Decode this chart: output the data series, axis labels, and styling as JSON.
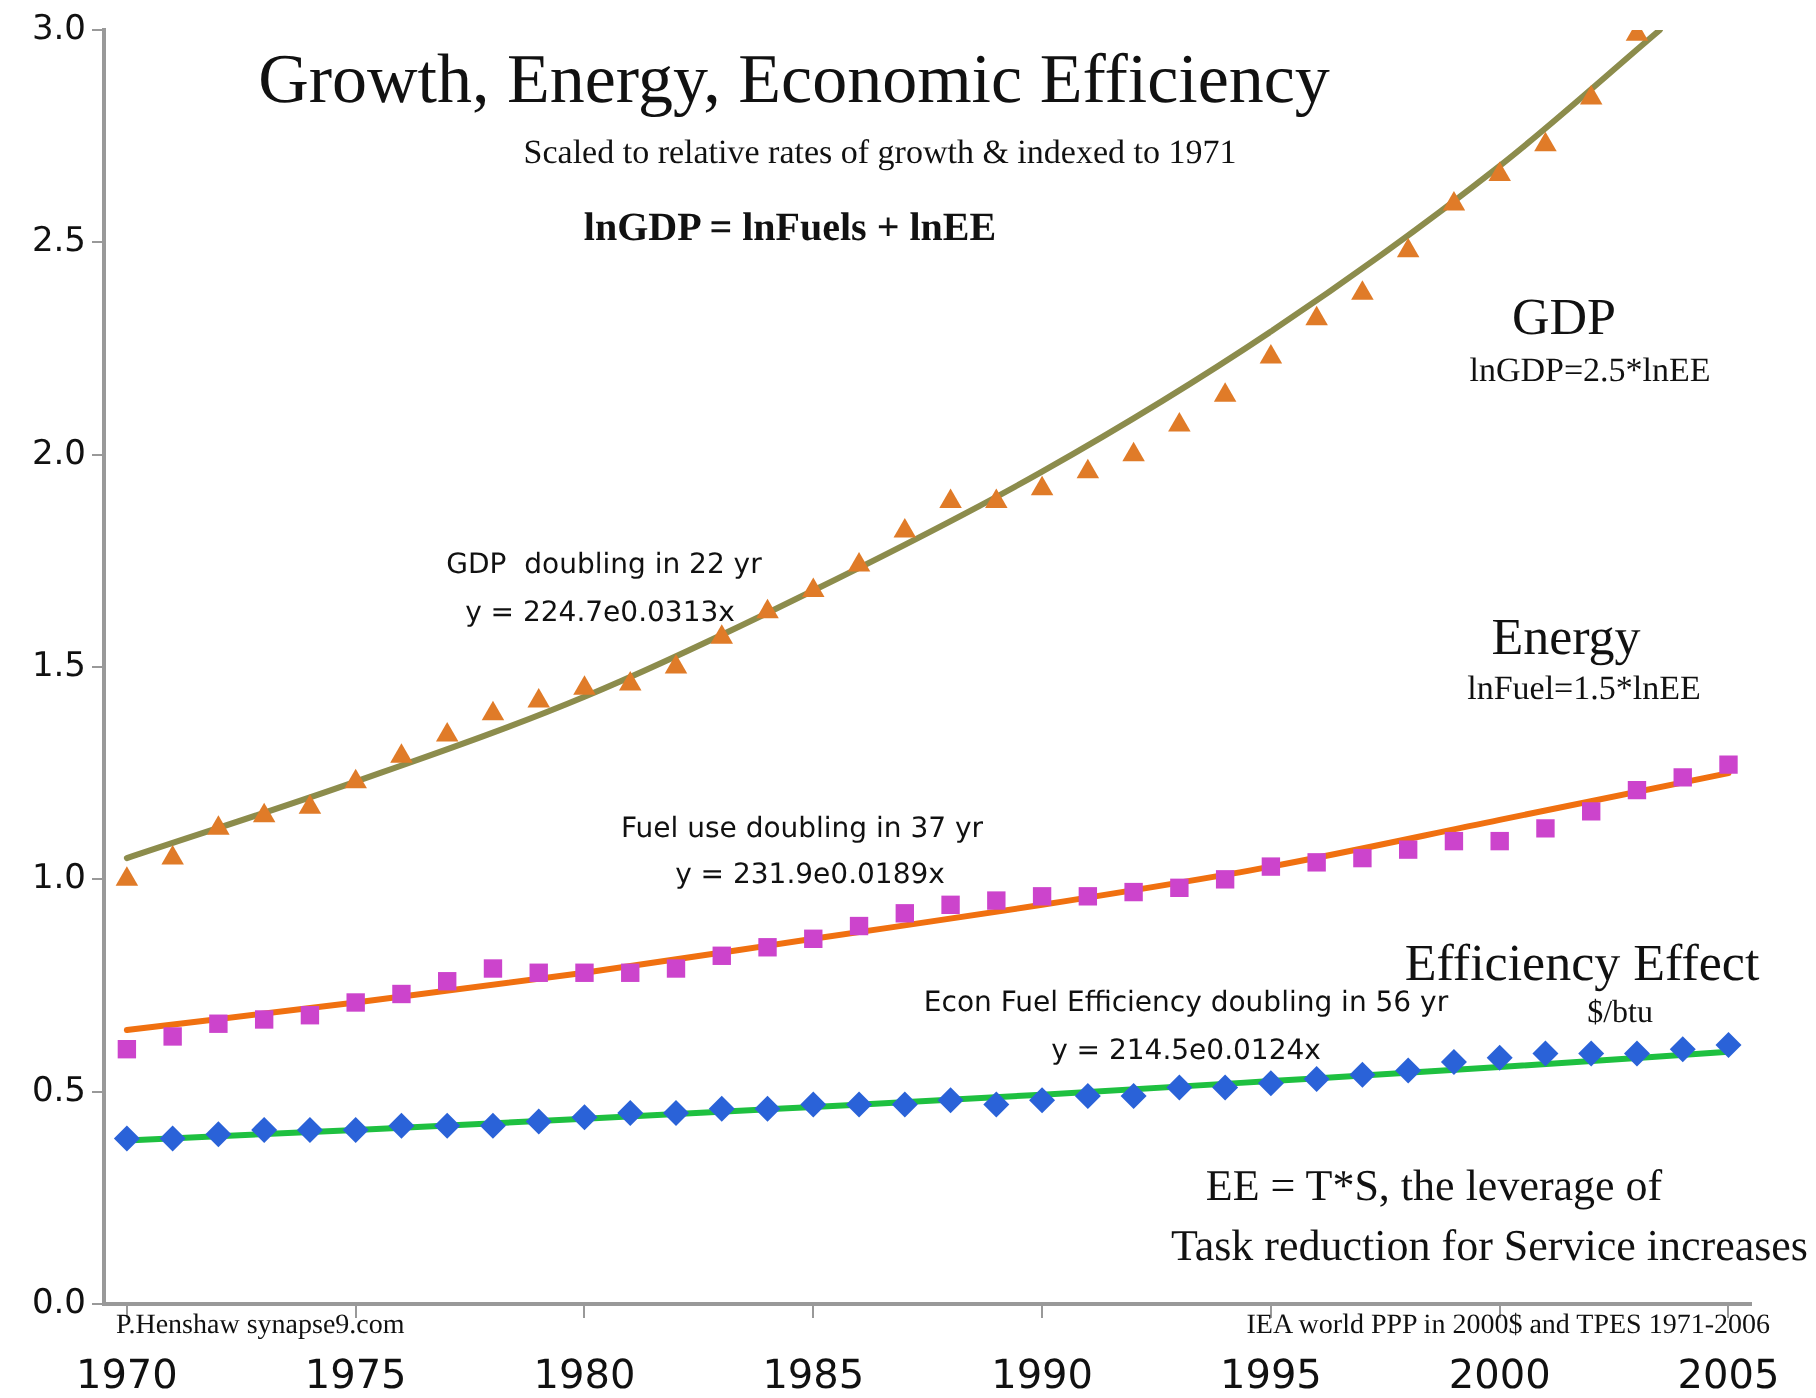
{
  "chart_data": {
    "type": "scatter",
    "title": "Growth, Energy, Economic Efficiency",
    "subtitle": "Scaled to relative rates of growth & indexed to 1971",
    "annotations": [
      "lnGDP = lnFuels + lnEE",
      "lnGDP=2.5*lnEE",
      "GDP  doubling in 22 yr",
      "y = 224.7e0.0313x",
      "lnFuel=1.5*lnEE",
      "Fuel use doubling in 37 yr",
      "y = 231.9e0.0189x",
      "$/btu",
      "Econ Fuel Efficiency doubling in 56 yr",
      "y = 214.5e0.0124x",
      "EE = T*S, the leverage of",
      "Task reduction for Service increases",
      "P.Henshaw synapse9.com",
      "IEA world PPP in 2000$ and TPES 1971-2006"
    ],
    "x": [
      1970,
      1971,
      1972,
      1973,
      1974,
      1975,
      1976,
      1977,
      1978,
      1979,
      1980,
      1981,
      1982,
      1983,
      1984,
      1985,
      1986,
      1987,
      1988,
      1989,
      1990,
      1991,
      1992,
      1993,
      1994,
      1995,
      1996,
      1997,
      1998,
      1999,
      2000,
      2001,
      2002,
      2003,
      2004,
      2005
    ],
    "series": [
      {
        "name": "GDP",
        "marker": "triangle",
        "color": "#e07b28",
        "values": [
          1.0,
          1.05,
          1.12,
          1.15,
          1.17,
          1.23,
          1.29,
          1.34,
          1.39,
          1.42,
          1.45,
          1.46,
          1.5,
          1.57,
          1.63,
          1.68,
          1.74,
          1.82,
          1.89,
          1.89,
          1.92,
          1.96,
          2.0,
          2.07,
          2.14,
          2.23,
          2.32,
          2.38,
          2.48,
          2.59,
          2.66,
          2.73,
          2.84,
          2.99,
          null,
          null
        ]
      },
      {
        "type": "line",
        "marker": "none",
        "color": "#8c8c4c",
        "x": [
          1970,
          1975,
          1980,
          1985,
          1990,
          1995,
          2000,
          2003.5
        ],
        "values": [
          1.05,
          1.23,
          1.43,
          1.68,
          1.96,
          2.29,
          2.68,
          3.0
        ]
      },
      {
        "name": "Energy",
        "marker": "square",
        "color": "#cc44cc",
        "values": [
          0.6,
          0.63,
          0.66,
          0.67,
          0.68,
          0.71,
          0.73,
          0.76,
          0.79,
          0.78,
          0.78,
          0.78,
          0.79,
          0.82,
          0.84,
          0.86,
          0.89,
          0.92,
          0.94,
          0.95,
          0.96,
          0.96,
          0.97,
          0.98,
          1.0,
          1.03,
          1.04,
          1.05,
          1.07,
          1.09,
          1.09,
          1.12,
          1.16,
          1.21,
          1.24,
          1.27
        ]
      },
      {
        "type": "line",
        "marker": "none",
        "color": "#f07010",
        "x": [
          1970,
          1975,
          1980,
          1985,
          1990,
          1995,
          2000,
          2005
        ],
        "values": [
          0.645,
          0.71,
          0.78,
          0.86,
          0.94,
          1.03,
          1.14,
          1.25
        ]
      },
      {
        "name": "Efficiency Effect",
        "marker": "diamond",
        "color": "#2a62d8",
        "values": [
          0.39,
          0.39,
          0.4,
          0.41,
          0.41,
          0.41,
          0.42,
          0.42,
          0.42,
          0.43,
          0.44,
          0.45,
          0.45,
          0.46,
          0.46,
          0.47,
          0.47,
          0.47,
          0.48,
          0.47,
          0.48,
          0.49,
          0.49,
          0.51,
          0.51,
          0.52,
          0.53,
          0.54,
          0.55,
          0.57,
          0.58,
          0.59,
          0.59,
          0.59,
          0.6,
          0.61
        ]
      },
      {
        "type": "line",
        "marker": "none",
        "color": "#1ec040",
        "x": [
          1970,
          1975,
          1980,
          1985,
          1990,
          1995,
          2000,
          2005
        ],
        "values": [
          0.385,
          0.41,
          0.436,
          0.464,
          0.493,
          0.525,
          0.558,
          0.594
        ]
      }
    ],
    "xlim": [
      1969.5,
      2005.5
    ],
    "xticks": [
      1970,
      1975,
      1980,
      1985,
      1990,
      1995,
      2000,
      2005
    ],
    "ylim": [
      0,
      3
    ],
    "yticks": [
      {
        "value": 0,
        "label": "0.0"
      },
      {
        "value": 0.5,
        "label": "0.5"
      },
      {
        "value": 1,
        "label": "1.0"
      },
      {
        "value": 1.5,
        "label": "1.5"
      },
      {
        "value": 2,
        "label": "2.0"
      },
      {
        "value": 2.5,
        "label": "2.5"
      },
      {
        "value": 3,
        "label": "3.0"
      }
    ],
    "grid": false,
    "legend": false
  }
}
